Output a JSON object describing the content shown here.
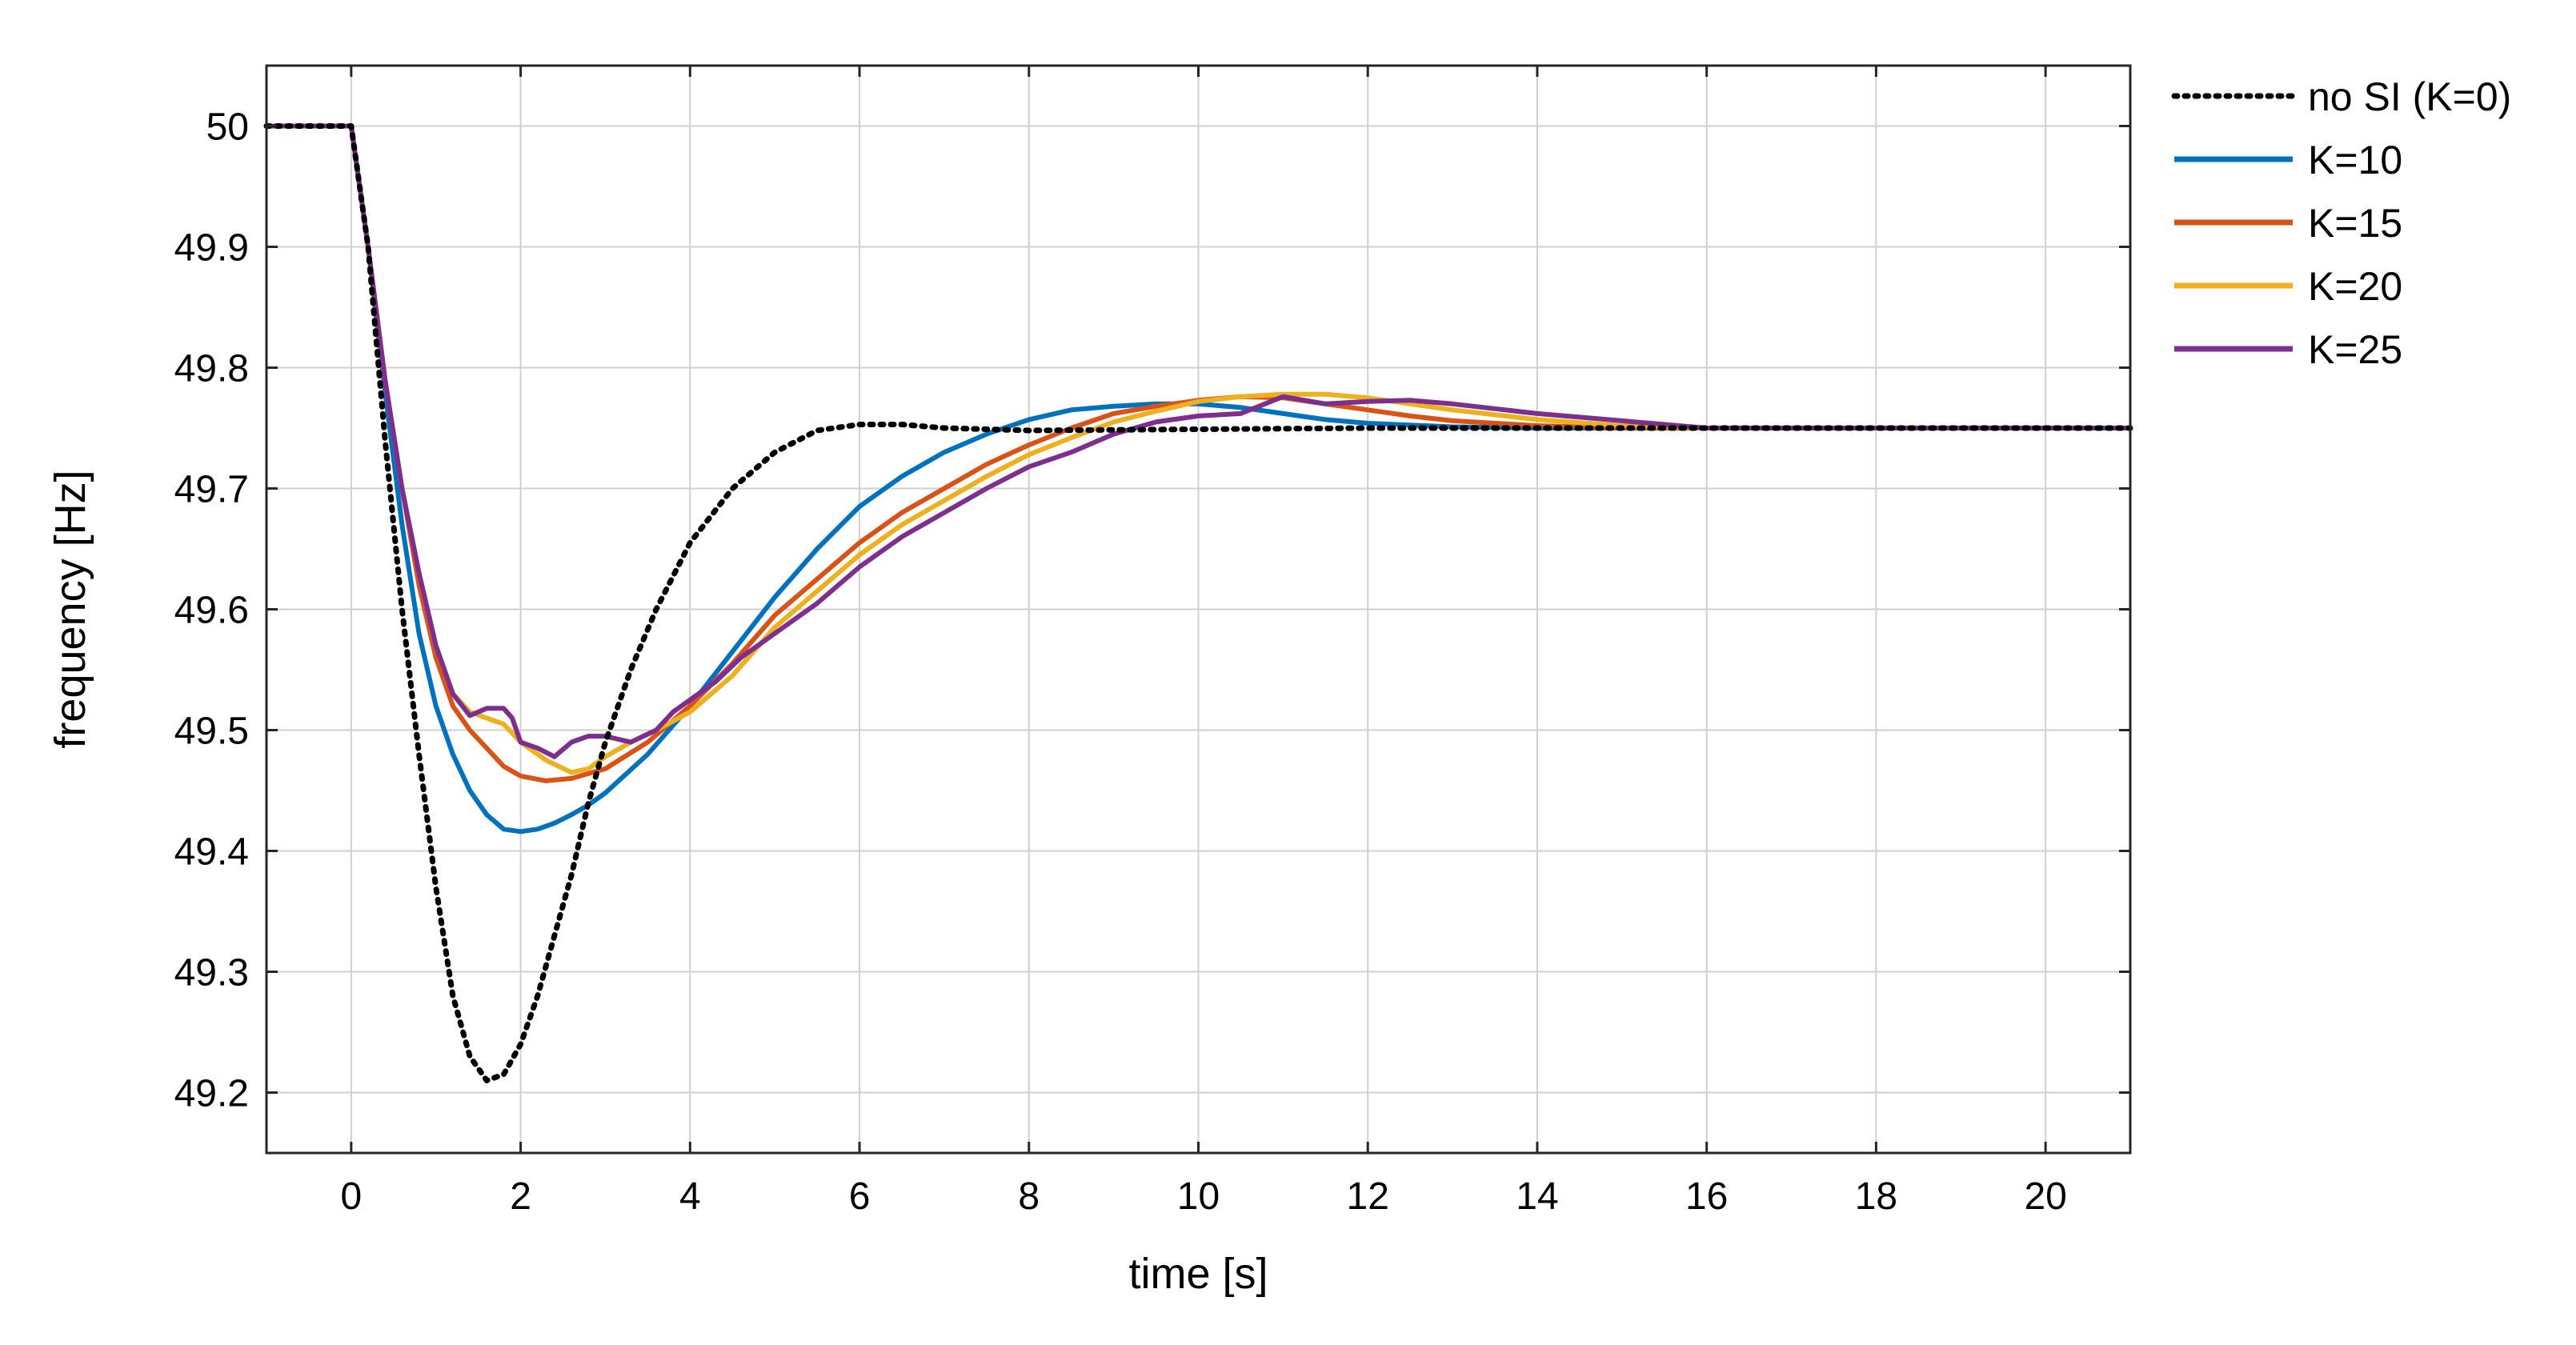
{
  "chart_data": {
    "type": "line",
    "title": "",
    "xlabel": "time [s]",
    "ylabel": "frequency [Hz]",
    "xlim": [
      -1,
      21
    ],
    "ylim": [
      49.15,
      50.05
    ],
    "grid": true,
    "xticks": [
      0,
      2,
      4,
      6,
      8,
      10,
      12,
      14,
      16,
      18,
      20
    ],
    "xtick_labels": [
      "0",
      "2",
      "4",
      "6",
      "8",
      "10",
      "12",
      "14",
      "16",
      "18",
      "20"
    ],
    "yticks": [
      49.2,
      49.3,
      49.4,
      49.5,
      49.6,
      49.7,
      49.8,
      49.9,
      50
    ],
    "ytick_labels": [
      "49.2",
      "49.3",
      "49.4",
      "49.5",
      "49.6",
      "49.7",
      "49.8",
      "49.9",
      "50"
    ],
    "legend_position": "outside-top-right",
    "series": [
      {
        "name": "no SI (K=0)",
        "color": "#000000",
        "style": "dotted",
        "points": [
          [
            -1,
            50
          ],
          [
            0,
            50
          ],
          [
            0.2,
            49.9
          ],
          [
            0.4,
            49.74
          ],
          [
            0.6,
            49.6
          ],
          [
            0.8,
            49.48
          ],
          [
            1.0,
            49.37
          ],
          [
            1.2,
            49.28
          ],
          [
            1.4,
            49.23
          ],
          [
            1.6,
            49.21
          ],
          [
            1.8,
            49.215
          ],
          [
            2.0,
            49.24
          ],
          [
            2.2,
            49.28
          ],
          [
            2.4,
            49.33
          ],
          [
            2.6,
            49.38
          ],
          [
            2.8,
            49.44
          ],
          [
            3.0,
            49.49
          ],
          [
            3.3,
            49.55
          ],
          [
            3.6,
            49.6
          ],
          [
            4.0,
            49.655
          ],
          [
            4.5,
            49.7
          ],
          [
            5.0,
            49.73
          ],
          [
            5.5,
            49.748
          ],
          [
            6.0,
            49.753
          ],
          [
            6.5,
            49.753
          ],
          [
            7.0,
            49.75
          ],
          [
            8.0,
            49.748
          ],
          [
            10,
            49.749
          ],
          [
            12,
            49.75
          ],
          [
            14,
            49.75
          ],
          [
            16,
            49.75
          ],
          [
            18,
            49.75
          ],
          [
            21,
            49.75
          ]
        ]
      },
      {
        "name": "K=10",
        "color": "#0072BD",
        "style": "solid",
        "points": [
          [
            -1,
            50
          ],
          [
            0,
            50
          ],
          [
            0.2,
            49.9
          ],
          [
            0.4,
            49.78
          ],
          [
            0.6,
            49.67
          ],
          [
            0.8,
            49.58
          ],
          [
            1.0,
            49.52
          ],
          [
            1.2,
            49.48
          ],
          [
            1.4,
            49.45
          ],
          [
            1.6,
            49.43
          ],
          [
            1.8,
            49.418
          ],
          [
            2.0,
            49.416
          ],
          [
            2.2,
            49.418
          ],
          [
            2.4,
            49.423
          ],
          [
            2.6,
            49.43
          ],
          [
            2.8,
            49.438
          ],
          [
            3.0,
            49.448
          ],
          [
            3.5,
            49.48
          ],
          [
            4.0,
            49.52
          ],
          [
            4.5,
            49.565
          ],
          [
            5.0,
            49.61
          ],
          [
            5.5,
            49.65
          ],
          [
            6.0,
            49.685
          ],
          [
            6.5,
            49.71
          ],
          [
            7.0,
            49.73
          ],
          [
            7.5,
            49.745
          ],
          [
            8.0,
            49.757
          ],
          [
            8.5,
            49.765
          ],
          [
            9.0,
            49.768
          ],
          [
            9.5,
            49.77
          ],
          [
            10.0,
            49.77
          ],
          [
            10.5,
            49.767
          ],
          [
            11.0,
            49.762
          ],
          [
            11.5,
            49.757
          ],
          [
            12.0,
            49.754
          ],
          [
            13.0,
            49.751
          ],
          [
            14.0,
            49.75
          ],
          [
            16,
            49.75
          ],
          [
            18,
            49.75
          ],
          [
            21,
            49.75
          ]
        ]
      },
      {
        "name": "K=15",
        "color": "#D95319",
        "style": "solid",
        "points": [
          [
            -1,
            50
          ],
          [
            0,
            50
          ],
          [
            0.2,
            49.9
          ],
          [
            0.4,
            49.79
          ],
          [
            0.6,
            49.7
          ],
          [
            0.8,
            49.62
          ],
          [
            1.0,
            49.56
          ],
          [
            1.2,
            49.52
          ],
          [
            1.4,
            49.5
          ],
          [
            1.6,
            49.485
          ],
          [
            1.8,
            49.47
          ],
          [
            2.0,
            49.462
          ],
          [
            2.3,
            49.458
          ],
          [
            2.6,
            49.46
          ],
          [
            3.0,
            49.468
          ],
          [
            3.5,
            49.49
          ],
          [
            4.0,
            49.52
          ],
          [
            4.5,
            49.555
          ],
          [
            5.0,
            49.595
          ],
          [
            5.5,
            49.625
          ],
          [
            6.0,
            49.655
          ],
          [
            6.5,
            49.68
          ],
          [
            7.0,
            49.7
          ],
          [
            7.5,
            49.72
          ],
          [
            8.0,
            49.736
          ],
          [
            8.5,
            49.75
          ],
          [
            9.0,
            49.762
          ],
          [
            9.5,
            49.768
          ],
          [
            10.0,
            49.773
          ],
          [
            10.5,
            49.776
          ],
          [
            11.0,
            49.775
          ],
          [
            11.5,
            49.77
          ],
          [
            12.0,
            49.765
          ],
          [
            12.5,
            49.76
          ],
          [
            13.0,
            49.756
          ],
          [
            14.0,
            49.752
          ],
          [
            15.0,
            49.75
          ],
          [
            16,
            49.75
          ],
          [
            18,
            49.75
          ],
          [
            21,
            49.75
          ]
        ]
      },
      {
        "name": "K=20",
        "color": "#EDB120",
        "style": "solid",
        "points": [
          [
            -1,
            50
          ],
          [
            0,
            50
          ],
          [
            0.2,
            49.9
          ],
          [
            0.4,
            49.79
          ],
          [
            0.6,
            49.7
          ],
          [
            0.8,
            49.63
          ],
          [
            1.0,
            49.57
          ],
          [
            1.2,
            49.53
          ],
          [
            1.4,
            49.515
          ],
          [
            1.6,
            49.51
          ],
          [
            1.8,
            49.505
          ],
          [
            2.0,
            49.49
          ],
          [
            2.3,
            49.475
          ],
          [
            2.6,
            49.465
          ],
          [
            2.8,
            49.468
          ],
          [
            3.0,
            49.478
          ],
          [
            3.3,
            49.49
          ],
          [
            3.6,
            49.5
          ],
          [
            4.0,
            49.515
          ],
          [
            4.5,
            49.545
          ],
          [
            5.0,
            49.585
          ],
          [
            5.5,
            49.615
          ],
          [
            6.0,
            49.645
          ],
          [
            6.5,
            49.67
          ],
          [
            7.0,
            49.69
          ],
          [
            7.5,
            49.71
          ],
          [
            8.0,
            49.728
          ],
          [
            8.5,
            49.742
          ],
          [
            9.0,
            49.755
          ],
          [
            9.5,
            49.764
          ],
          [
            10.0,
            49.772
          ],
          [
            10.5,
            49.776
          ],
          [
            11.0,
            49.778
          ],
          [
            11.5,
            49.778
          ],
          [
            12.0,
            49.775
          ],
          [
            12.5,
            49.77
          ],
          [
            13.0,
            49.765
          ],
          [
            14.0,
            49.757
          ],
          [
            15.0,
            49.752
          ],
          [
            16,
            49.75
          ],
          [
            18,
            49.75
          ],
          [
            21,
            49.75
          ]
        ]
      },
      {
        "name": "K=25",
        "color": "#7E2F8E",
        "style": "solid",
        "points": [
          [
            -1,
            50
          ],
          [
            0,
            50
          ],
          [
            0.2,
            49.9
          ],
          [
            0.4,
            49.79
          ],
          [
            0.6,
            49.7
          ],
          [
            0.8,
            49.63
          ],
          [
            1.0,
            49.57
          ],
          [
            1.2,
            49.53
          ],
          [
            1.4,
            49.512
          ],
          [
            1.6,
            49.518
          ],
          [
            1.8,
            49.518
          ],
          [
            1.9,
            49.51
          ],
          [
            2.0,
            49.49
          ],
          [
            2.2,
            49.485
          ],
          [
            2.4,
            49.478
          ],
          [
            2.6,
            49.49
          ],
          [
            2.8,
            49.495
          ],
          [
            3.0,
            49.495
          ],
          [
            3.3,
            49.49
          ],
          [
            3.6,
            49.5
          ],
          [
            3.8,
            49.515
          ],
          [
            4.0,
            49.525
          ],
          [
            4.3,
            49.54
          ],
          [
            4.6,
            49.56
          ],
          [
            5.0,
            49.58
          ],
          [
            5.5,
            49.605
          ],
          [
            6.0,
            49.635
          ],
          [
            6.5,
            49.66
          ],
          [
            7.0,
            49.68
          ],
          [
            7.5,
            49.7
          ],
          [
            8.0,
            49.718
          ],
          [
            8.5,
            49.73
          ],
          [
            9.0,
            49.745
          ],
          [
            9.5,
            49.755
          ],
          [
            10.0,
            49.76
          ],
          [
            10.5,
            49.762
          ],
          [
            11.0,
            49.776
          ],
          [
            11.5,
            49.77
          ],
          [
            12.0,
            49.772
          ],
          [
            12.5,
            49.773
          ],
          [
            13.0,
            49.77
          ],
          [
            13.5,
            49.766
          ],
          [
            14.0,
            49.762
          ],
          [
            15.0,
            49.756
          ],
          [
            16.0,
            49.75
          ],
          [
            18,
            49.75
          ],
          [
            21,
            49.75
          ]
        ]
      }
    ]
  }
}
